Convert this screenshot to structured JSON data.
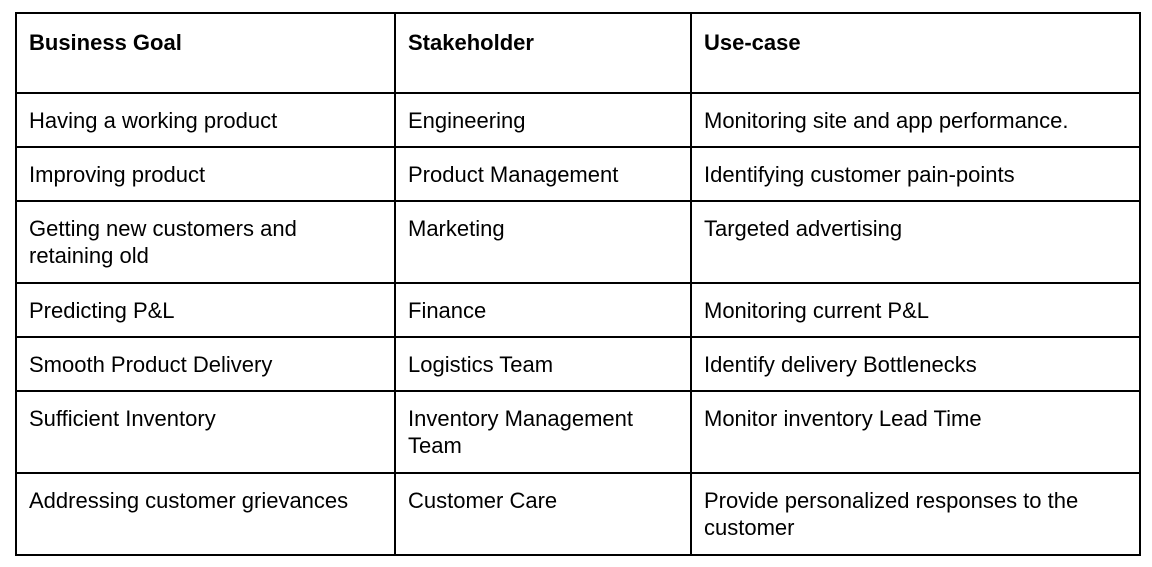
{
  "table": {
    "headers": [
      "Business Goal",
      "Stakeholder",
      "Use-case"
    ],
    "rows": [
      [
        "Having a working product",
        "Engineering",
        "Monitoring site and app performance."
      ],
      [
        "Improving product",
        "Product Management",
        "Identifying customer pain-points"
      ],
      [
        "Getting new customers and retaining old",
        "Marketing",
        "Targeted advertising"
      ],
      [
        "Predicting P&L",
        "Finance",
        "Monitoring current P&L"
      ],
      [
        "Smooth Product Delivery",
        "Logistics Team",
        "Identify delivery Bottlenecks"
      ],
      [
        "Sufficient Inventory",
        "Inventory Management Team",
        "Monitor inventory Lead Time"
      ],
      [
        "Addressing customer grievances",
        "Customer Care",
        "Provide personalized responses to the customer"
      ]
    ]
  }
}
